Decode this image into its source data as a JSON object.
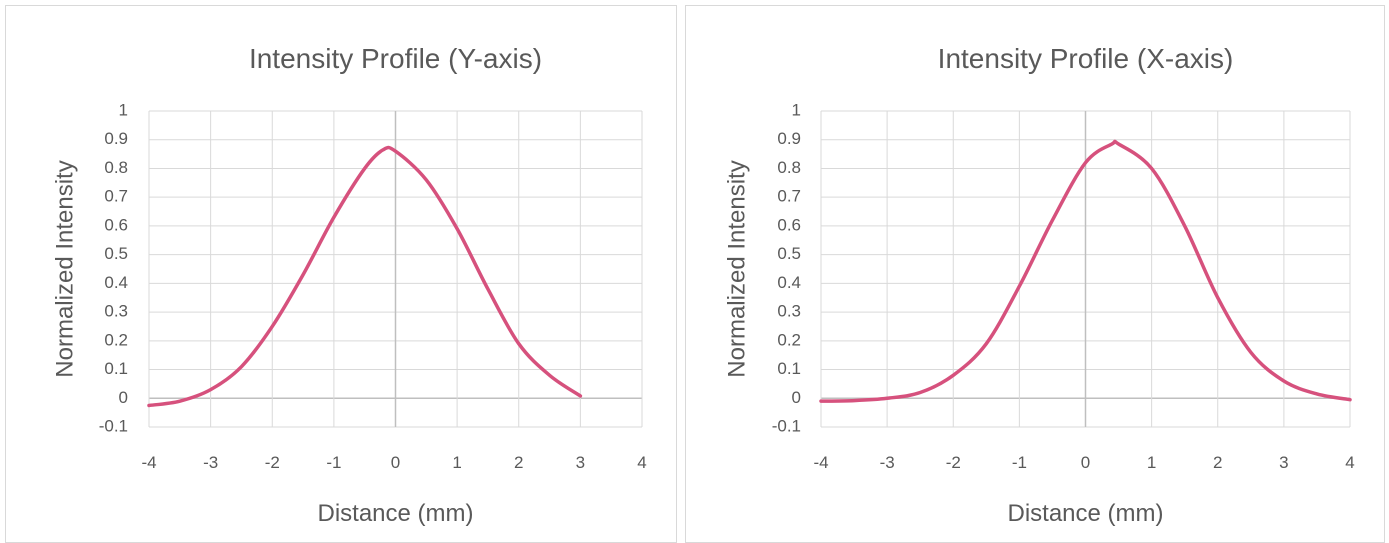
{
  "chart_data": [
    {
      "type": "line",
      "title": "Intensity Profile (Y-axis)",
      "xlabel": "Distance (mm)",
      "ylabel": "Normalized Intensity",
      "xlim": [
        -4,
        4
      ],
      "ylim": [
        -0.1,
        1
      ],
      "xticks": [
        "-4",
        "-3",
        "-2",
        "-1",
        "0",
        "1",
        "2",
        "3",
        "4"
      ],
      "yticks": [
        "-0.1",
        "0",
        "0.1",
        "0.2",
        "0.3",
        "0.4",
        "0.5",
        "0.6",
        "0.7",
        "0.8",
        "0.9",
        "1"
      ],
      "grid": true,
      "legend": "none",
      "series": [
        {
          "color": "#d6517d",
          "x": [
            -4.0,
            -3.5,
            -3.0,
            -2.5,
            -2.0,
            -1.5,
            -1.0,
            -0.5,
            -0.2,
            0.0,
            0.5,
            1.0,
            1.5,
            2.0,
            2.5,
            3.0
          ],
          "y": [
            -0.025,
            -0.01,
            0.03,
            0.11,
            0.25,
            0.43,
            0.63,
            0.8,
            0.865,
            0.86,
            0.76,
            0.59,
            0.38,
            0.19,
            0.08,
            0.008
          ]
        }
      ]
    },
    {
      "type": "line",
      "title": "Intensity Profile (X-axis)",
      "xlabel": "Distance (mm)",
      "ylabel": "Normalized Intensity",
      "xlim": [
        -4,
        4
      ],
      "ylim": [
        -0.1,
        1
      ],
      "xticks": [
        "-4",
        "-3",
        "-2",
        "-1",
        "0",
        "1",
        "2",
        "3",
        "4"
      ],
      "yticks": [
        "-0.1",
        "0",
        "0.1",
        "0.2",
        "0.3",
        "0.4",
        "0.5",
        "0.6",
        "0.7",
        "0.8",
        "0.9",
        "1"
      ],
      "grid": true,
      "legend": "none",
      "series": [
        {
          "color": "#d6517d",
          "x": [
            -4.0,
            -3.5,
            -3.0,
            -2.5,
            -2.0,
            -1.5,
            -1.0,
            -0.5,
            0.0,
            0.4,
            0.5,
            1.0,
            1.5,
            2.0,
            2.5,
            3.0,
            3.5,
            4.0
          ],
          "y": [
            -0.01,
            -0.008,
            0.0,
            0.02,
            0.08,
            0.19,
            0.39,
            0.62,
            0.82,
            0.885,
            0.885,
            0.8,
            0.6,
            0.35,
            0.16,
            0.06,
            0.015,
            -0.005
          ]
        }
      ]
    }
  ]
}
